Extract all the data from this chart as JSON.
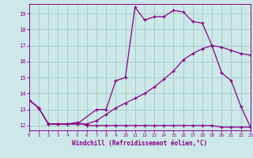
{
  "title": "",
  "xlabel": "Windchill (Refroidissement éolien,°C)",
  "bg_color": "#cce8e8",
  "grid_color": "#aacccc",
  "line_color": "#880088",
  "xmin": 0,
  "xmax": 23,
  "ymin": 11.7,
  "ymax": 19.6,
  "yticks": [
    12,
    13,
    14,
    15,
    16,
    17,
    18,
    19
  ],
  "xticks": [
    0,
    1,
    2,
    3,
    4,
    5,
    6,
    7,
    8,
    9,
    10,
    11,
    12,
    13,
    14,
    15,
    16,
    17,
    18,
    19,
    20,
    21,
    22,
    23
  ],
  "series1_x": [
    0,
    1,
    2,
    3,
    4,
    5,
    7,
    8,
    9,
    10,
    11,
    12,
    13,
    14,
    15,
    16,
    17,
    18,
    19,
    20,
    21,
    22,
    23
  ],
  "series1_y": [
    13.6,
    13.1,
    12.1,
    12.1,
    12.1,
    12.1,
    13.0,
    13.0,
    14.8,
    15.0,
    19.4,
    18.6,
    18.8,
    18.8,
    19.2,
    19.1,
    18.5,
    18.4,
    17.0,
    15.3,
    14.8,
    13.2,
    11.9
  ],
  "series2_x": [
    0,
    1,
    2,
    3,
    4,
    5,
    6,
    7,
    8,
    9,
    10,
    11,
    12,
    13,
    14,
    15,
    16,
    17,
    18,
    19,
    20,
    21,
    22,
    23
  ],
  "series2_y": [
    13.6,
    13.1,
    12.1,
    12.1,
    12.1,
    12.2,
    12.0,
    12.0,
    12.0,
    12.0,
    12.0,
    12.0,
    12.0,
    12.0,
    12.0,
    12.0,
    12.0,
    12.0,
    12.0,
    12.0,
    11.9,
    11.9,
    11.9,
    11.9
  ],
  "series3_x": [
    0,
    1,
    2,
    3,
    4,
    5,
    6,
    7,
    8,
    9,
    10,
    11,
    12,
    13,
    14,
    15,
    16,
    17,
    18,
    19,
    20,
    21,
    22,
    23
  ],
  "series3_y": [
    13.6,
    13.1,
    12.1,
    12.1,
    12.1,
    12.1,
    12.1,
    12.3,
    12.7,
    13.1,
    13.4,
    13.7,
    14.0,
    14.4,
    14.9,
    15.4,
    16.1,
    16.5,
    16.8,
    17.0,
    16.9,
    16.7,
    16.5,
    16.4
  ]
}
